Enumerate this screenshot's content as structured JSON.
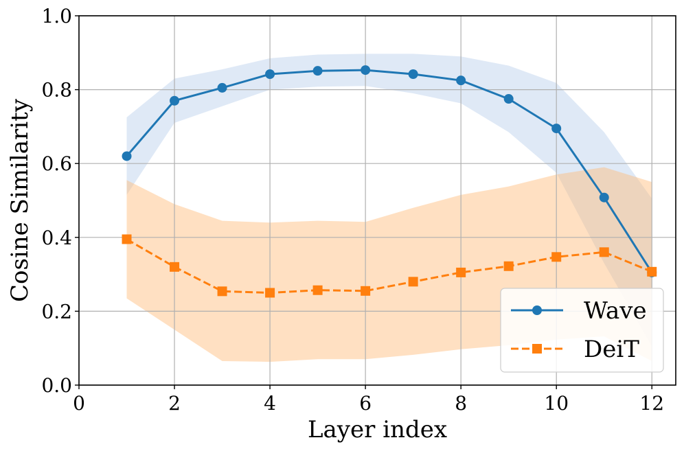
{
  "chart_data": {
    "type": "line",
    "xlabel": "Layer index",
    "ylabel": "Cosine Similarity",
    "xlim": [
      0,
      12.5
    ],
    "ylim": [
      0,
      1.0
    ],
    "x_ticks": [
      0,
      2,
      4,
      6,
      8,
      10,
      12
    ],
    "y_ticks": [
      0.0,
      0.2,
      0.4,
      0.6,
      0.8,
      1.0
    ],
    "x_tick_labels": [
      "0",
      "2",
      "4",
      "6",
      "8",
      "10",
      "12"
    ],
    "y_tick_labels": [
      "0.0",
      "0.2",
      "0.4",
      "0.6",
      "0.8",
      "1.0"
    ],
    "grid": true,
    "legend_position": "bottom-right",
    "x": [
      1,
      2,
      3,
      4,
      5,
      6,
      7,
      8,
      9,
      10,
      11,
      12
    ],
    "series": [
      {
        "name": "Wave",
        "color": "#1f77b4",
        "band_color": "#aec7e8",
        "marker": "circle",
        "linestyle": "solid",
        "values": [
          0.62,
          0.77,
          0.805,
          0.842,
          0.851,
          0.853,
          0.842,
          0.825,
          0.775,
          0.695,
          0.508,
          0.305
        ],
        "upper": [
          0.725,
          0.83,
          0.855,
          0.885,
          0.895,
          0.897,
          0.897,
          0.89,
          0.865,
          0.818,
          0.685,
          0.505
        ],
        "lower": [
          0.515,
          0.71,
          0.755,
          0.8,
          0.808,
          0.81,
          0.79,
          0.763,
          0.685,
          0.575,
          0.33,
          0.105
        ]
      },
      {
        "name": "DeiT",
        "color": "#ff7f0e",
        "band_color": "#ffbb78",
        "marker": "square",
        "linestyle": "dashed",
        "values": [
          0.395,
          0.32,
          0.254,
          0.25,
          0.257,
          0.255,
          0.28,
          0.305,
          0.322,
          0.347,
          0.36,
          0.307
        ],
        "upper": [
          0.555,
          0.49,
          0.445,
          0.44,
          0.445,
          0.442,
          0.48,
          0.515,
          0.538,
          0.57,
          0.59,
          0.55
        ],
        "lower": [
          0.235,
          0.15,
          0.065,
          0.063,
          0.07,
          0.07,
          0.082,
          0.097,
          0.108,
          0.123,
          0.132,
          0.065
        ]
      }
    ]
  }
}
